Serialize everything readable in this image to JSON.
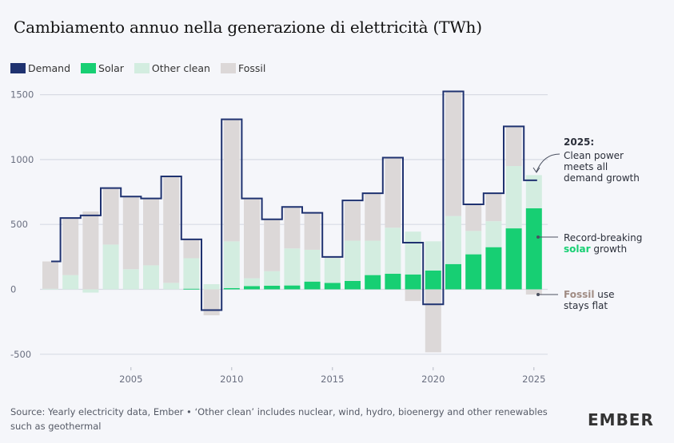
{
  "header": {
    "title": "Cambiamento annuo nella generazione di elettricità (TWh)"
  },
  "legend": [
    {
      "key": "demand",
      "label": "Demand",
      "color": "#1f3270",
      "style": "outline"
    },
    {
      "key": "solar",
      "label": "Solar",
      "color": "#17cf73",
      "style": "fill"
    },
    {
      "key": "other_clean",
      "label": "Other clean",
      "color": "#d3ede0",
      "style": "fill"
    },
    {
      "key": "fossil",
      "label": "Fossil",
      "color": "#dcd8d8",
      "style": "fill"
    }
  ],
  "annotations": {
    "a2025_title": "2025:",
    "a2025_lines": [
      "Clean power",
      "meets all",
      "demand growth"
    ],
    "solar_line1": "Record-breaking",
    "solar_word": "solar",
    "solar_rest": " growth",
    "fossil_word": "Fossil",
    "fossil_rest": " use",
    "fossil_line2": "stays flat"
  },
  "footer": {
    "source": "Source: Yearly electricity data, Ember • ‘Other clean’ includes nuclear, wind, hydro, bioenergy and other renewables such as geothermal",
    "logo": "EMBER"
  },
  "colors": {
    "demand": "#1f3270",
    "solar": "#17cf73",
    "other_clean": "#d3ede0",
    "fossil": "#dcd8d8",
    "grid": "#d8dbe4",
    "fossil_text": "#a08c84"
  },
  "chart_data": {
    "type": "bar",
    "subtype": "stacked-with-step-line",
    "title": "Cambiamento annuo nella generazione di elettricità (TWh)",
    "xlabel": "",
    "ylabel": "TWh",
    "ylim": [
      -550,
      1600
    ],
    "yticks": [
      -500,
      0,
      500,
      1000,
      1500
    ],
    "xticks": [
      2005,
      2010,
      2015,
      2020,
      2025
    ],
    "grid": true,
    "legend_position": "top-left",
    "categories": [
      2001,
      2002,
      2003,
      2004,
      2005,
      2006,
      2007,
      2008,
      2009,
      2010,
      2011,
      2012,
      2013,
      2014,
      2015,
      2016,
      2017,
      2018,
      2019,
      2020,
      2021,
      2022,
      2023,
      2024,
      2025
    ],
    "series": [
      {
        "name": "Solar",
        "key": "solar",
        "values": [
          0,
          0,
          0,
          0,
          0,
          0,
          0,
          5,
          0,
          10,
          25,
          28,
          30,
          60,
          50,
          65,
          110,
          120,
          115,
          145,
          195,
          270,
          325,
          470,
          625
        ]
      },
      {
        "name": "Other clean",
        "key": "other_clean",
        "values": [
          5,
          110,
          -25,
          345,
          155,
          185,
          50,
          235,
          40,
          360,
          60,
          112,
          285,
          245,
          190,
          310,
          265,
          355,
          330,
          225,
          370,
          180,
          200,
          480,
          255
        ]
      },
      {
        "name": "Fossil",
        "key": "fossil",
        "values": [
          210,
          440,
          600,
          435,
          560,
          515,
          820,
          145,
          -200,
          940,
          615,
          400,
          320,
          285,
          10,
          300,
          365,
          545,
          -90,
          -485,
          960,
          205,
          215,
          305,
          -40
        ]
      },
      {
        "name": "Demand",
        "key": "demand",
        "values": [
          215,
          550,
          570,
          780,
          715,
          700,
          870,
          385,
          -160,
          1310,
          700,
          540,
          635,
          590,
          250,
          685,
          740,
          1015,
          360,
          -115,
          1525,
          655,
          740,
          1255,
          840
        ]
      }
    ]
  }
}
